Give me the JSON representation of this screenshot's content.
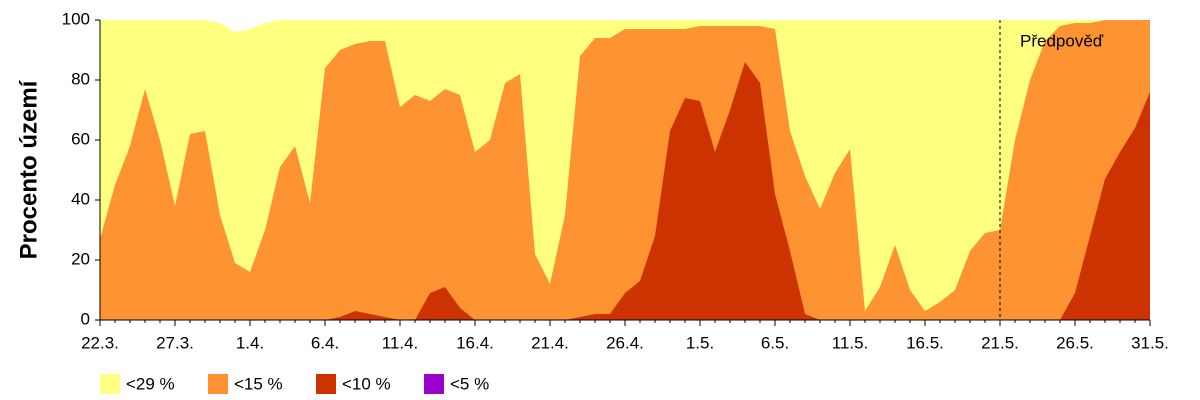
{
  "chart_data": {
    "type": "area",
    "ylabel": "Procento území",
    "categories": [
      "22.3.",
      null,
      null,
      null,
      null,
      "27.3.",
      null,
      null,
      null,
      null,
      "1.4.",
      null,
      null,
      null,
      null,
      "6.4.",
      null,
      null,
      null,
      null,
      "11.4.",
      null,
      null,
      null,
      null,
      "16.4.",
      null,
      null,
      null,
      null,
      "21.4.",
      null,
      null,
      null,
      null,
      "26.4.",
      null,
      null,
      null,
      null,
      "1.5.",
      null,
      null,
      null,
      null,
      "6.5.",
      null,
      null,
      null,
      null,
      "11.5.",
      null,
      null,
      null,
      null,
      "16.5.",
      null,
      null,
      null,
      null,
      "21.5.",
      null,
      null,
      null,
      null,
      "26.5.",
      null,
      null,
      null,
      null,
      "31.5."
    ],
    "series": [
      {
        "name": "<29 %",
        "color": "#ffff80",
        "values": [
          100,
          100,
          100,
          100,
          100,
          100,
          100,
          100,
          99,
          96,
          97,
          99,
          100,
          100,
          100,
          100,
          100,
          100,
          100,
          100,
          100,
          100,
          100,
          100,
          100,
          100,
          100,
          100,
          100,
          100,
          100,
          100,
          100,
          100,
          100,
          100,
          100,
          100,
          100,
          100,
          100,
          100,
          100,
          100,
          100,
          100,
          100,
          100,
          100,
          100,
          100,
          100,
          100,
          100,
          100,
          100,
          100,
          100,
          100,
          100,
          100,
          100,
          100,
          100,
          100,
          100,
          100,
          100,
          100,
          100,
          100
        ]
      },
      {
        "name": "<15 %",
        "color": "#fd9431",
        "values": [
          27,
          45,
          58,
          77,
          60,
          38,
          62,
          63,
          35,
          19,
          16,
          30,
          51,
          58,
          39,
          84,
          90,
          92,
          93,
          93,
          71,
          75,
          73,
          77,
          75,
          56,
          60,
          79,
          82,
          22,
          12,
          35,
          88,
          94,
          94,
          97,
          97,
          97,
          97,
          97,
          98,
          98,
          98,
          98,
          98,
          97,
          63,
          48,
          37,
          49,
          57,
          3,
          11,
          25,
          10,
          3,
          6,
          10,
          23,
          29,
          30,
          60,
          80,
          93,
          98,
          99,
          99,
          100,
          100,
          100,
          100
        ]
      },
      {
        "name": "<10 %",
        "color": "#cc3300",
        "values": [
          0,
          0,
          0,
          0,
          0,
          0,
          0,
          0,
          0,
          0,
          0,
          0,
          0,
          0,
          0,
          0,
          1,
          3,
          2,
          1,
          0,
          0,
          9,
          11,
          4,
          0,
          0,
          0,
          0,
          0,
          0,
          0,
          1,
          2,
          2,
          9,
          13,
          28,
          63,
          74,
          73,
          56,
          70,
          86,
          79,
          42,
          23,
          2,
          0,
          0,
          0,
          0,
          0,
          0,
          0,
          0,
          0,
          0,
          0,
          0,
          0,
          0,
          0,
          0,
          0,
          9,
          28,
          47,
          56,
          64,
          76
        ]
      },
      {
        "name": "<5 %",
        "color": "#9900cc",
        "values": [
          0,
          0,
          0,
          0,
          0,
          0,
          0,
          0,
          0,
          0,
          0,
          0,
          0,
          0,
          0,
          0,
          0,
          0,
          0,
          0,
          0,
          0,
          0,
          0,
          0,
          0,
          0,
          0,
          0,
          0,
          0,
          0,
          0,
          0,
          0,
          0,
          0,
          0,
          0,
          0,
          0,
          0,
          0,
          0,
          0,
          0,
          0,
          0,
          0,
          0,
          0,
          0,
          0,
          0,
          0,
          0,
          0,
          0,
          0,
          0,
          0,
          0,
          0,
          0,
          0,
          0,
          0,
          0,
          0,
          0,
          0
        ]
      }
    ],
    "annotation": {
      "text": "Předpověď",
      "x": "21.5."
    },
    "ylim": [
      0,
      100
    ],
    "yticks": [
      0,
      20,
      40,
      60,
      80,
      100
    ]
  }
}
